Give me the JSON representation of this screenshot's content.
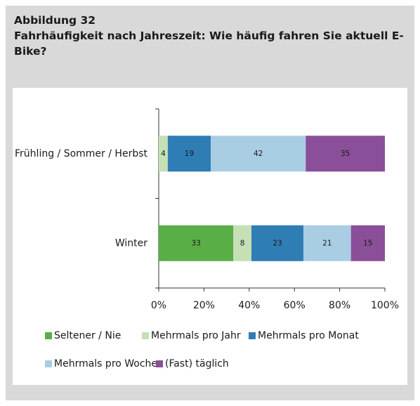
{
  "chart_data": {
    "type": "stacked_barh",
    "label": "Abbildung 32",
    "title": "Fahrhäufigkeit nach Jahreszeit: Wie häufig fahren Sie aktuell E-Bike?",
    "categories": [
      "Frühling / Sommer / Herbst",
      "Winter"
    ],
    "series": [
      {
        "name": "Seltener / Nie",
        "color": "#5aae46",
        "values": [
          0,
          33
        ]
      },
      {
        "name": "Mehrmals pro Jahr",
        "color": "#c5e0b4",
        "values": [
          4,
          8
        ]
      },
      {
        "name": "Mehrmals pro Monat",
        "color": "#2e7db5",
        "values": [
          19,
          23
        ]
      },
      {
        "name": "Mehrmals pro Woche",
        "color": "#a9cde3",
        "values": [
          42,
          21
        ]
      },
      {
        "name": "(Fast) täglich",
        "color": "#8a4f98",
        "values": [
          35,
          15
        ]
      }
    ],
    "xlim": [
      0,
      100
    ],
    "xticks": [
      {
        "value": 0,
        "label": "0%"
      },
      {
        "value": 20,
        "label": "20%"
      },
      {
        "value": 40,
        "label": "40%"
      },
      {
        "value": 60,
        "label": "60%"
      },
      {
        "value": 80,
        "label": "80%"
      },
      {
        "value": 100,
        "label": "100%"
      }
    ],
    "legend": "bottom"
  }
}
